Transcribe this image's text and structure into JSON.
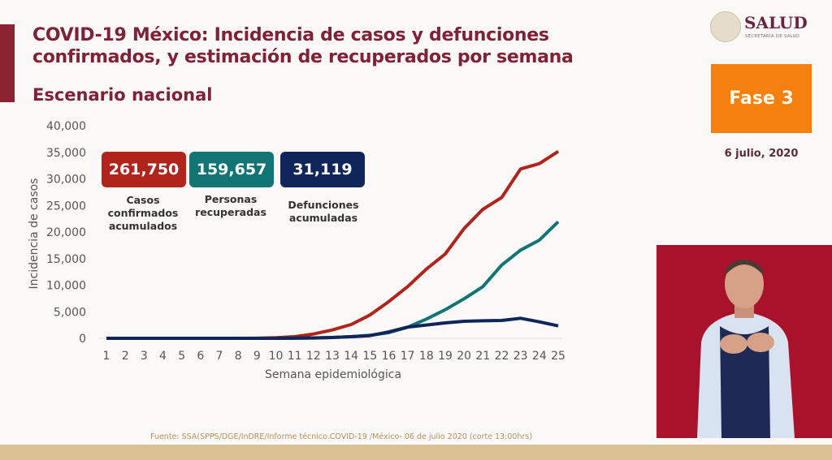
{
  "header": {
    "title_line1": "COVID-19 México: Incidencia de casos y defunciones",
    "title_line2": "confirmados, y estimación de recuperados por semana",
    "subtitle": "Escenario nacional"
  },
  "logo": {
    "name": "SALUD",
    "sub": "SECRETARÍA DE SALUD"
  },
  "phase": "Fase 3",
  "date": "6 julio, 2020",
  "kpis": [
    {
      "value": "261,750",
      "label1": "Casos",
      "label2": "confirmados",
      "label3": "acumulados",
      "color": "#b0241c"
    },
    {
      "value": "159,657",
      "label1": "Personas",
      "label2": "recuperadas",
      "color": "#137474"
    },
    {
      "value": "31,119",
      "label1": "Defunciones",
      "label2": "acumuladas",
      "color": "#10265a"
    }
  ],
  "source": "Fuente: SSA(SPPS/DGE/InDRE/Informe técnico.COVID-19 /México- 06 de julio 2020 (corte 13:00hrs)",
  "chart_data": {
    "type": "line",
    "title": "COVID-19 México: Incidencia de casos y defunciones confirmados, y estimación de recuperados por semana",
    "xlabel": "Semana epidemiológica",
    "ylabel": "Incidencia de casos",
    "ylim": [
      0,
      40000
    ],
    "yticks": [
      "0",
      "5,000",
      "10,000",
      "15,000",
      "20,000",
      "25,000",
      "30,000",
      "35,000",
      "40,000"
    ],
    "ytick_values": [
      0,
      5000,
      10000,
      15000,
      20000,
      25000,
      30000,
      35000,
      40000
    ],
    "x": [
      1,
      2,
      3,
      4,
      5,
      6,
      7,
      8,
      9,
      10,
      11,
      12,
      13,
      14,
      15,
      16,
      17,
      18,
      19,
      20,
      21,
      22,
      23,
      24,
      25
    ],
    "grid": false,
    "series": [
      {
        "name": "Casos confirmados",
        "color": "#b0241c",
        "values": [
          0,
          0,
          0,
          0,
          0,
          0,
          0,
          0,
          20,
          100,
          300,
          810,
          1570,
          2600,
          4380,
          6920,
          9720,
          13030,
          15880,
          20660,
          24270,
          26500,
          31860,
          32870,
          35160
        ]
      },
      {
        "name": "Personas recuperadas",
        "color": "#137474",
        "values": [
          0,
          0,
          0,
          0,
          0,
          0,
          0,
          0,
          0,
          0,
          20,
          50,
          150,
          300,
          560,
          1070,
          2090,
          3620,
          5390,
          7430,
          9720,
          13790,
          16590,
          18470,
          21940
        ]
      },
      {
        "name": "Defunciones",
        "color": "#10265a",
        "values": [
          0,
          0,
          0,
          0,
          0,
          0,
          0,
          0,
          0,
          0,
          30,
          80,
          150,
          300,
          500,
          1200,
          2100,
          2500,
          2900,
          3200,
          3300,
          3360,
          3770,
          3100,
          2340
        ]
      }
    ]
  }
}
